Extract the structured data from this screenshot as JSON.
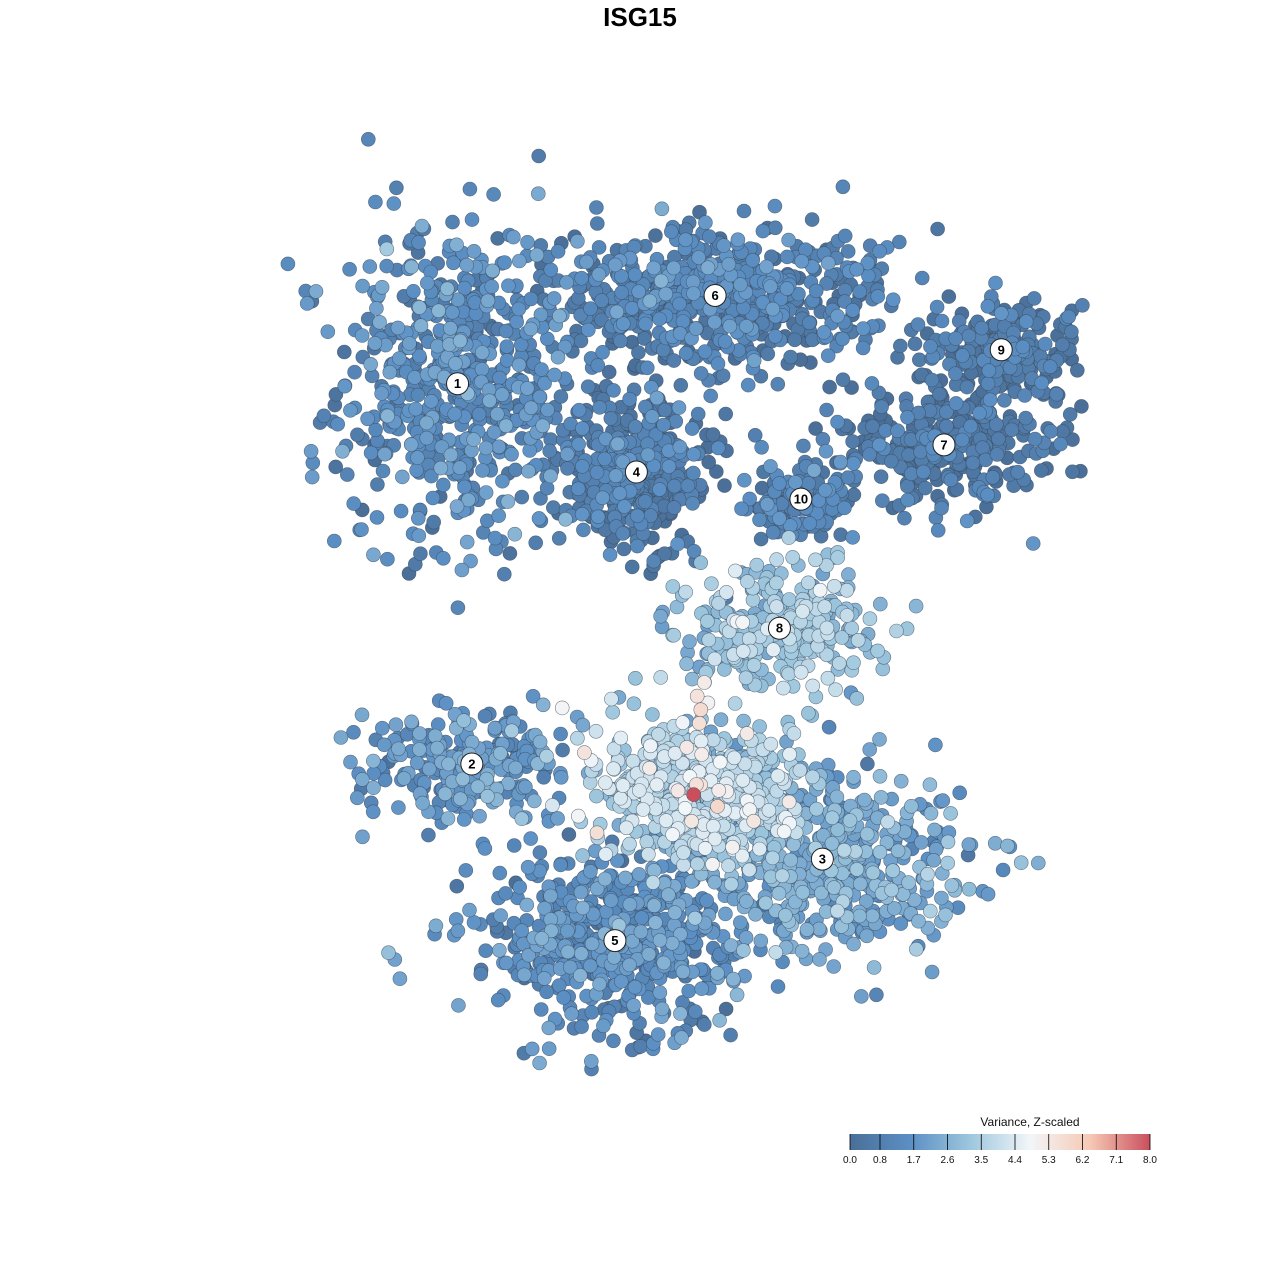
{
  "chart_data": {
    "type": "scatter",
    "title": "ISG15",
    "xlabel": "",
    "ylabel": "",
    "legend": {
      "title": "Variance, Z-scaled",
      "placement": "bottom-right",
      "range": [
        0.0,
        8.0
      ],
      "ticks": [
        "0.0",
        "0.8",
        "1.7",
        "2.6",
        "3.5",
        "4.4",
        "5.3",
        "6.2",
        "7.1",
        "8.0"
      ],
      "colors": [
        "#4a6f98",
        "#5b8fc4",
        "#9dc6dd",
        "#f2f6f9",
        "#f6c9b5",
        "#c94f5d"
      ]
    },
    "clusters": [
      {
        "label": "1",
        "x": 1.1,
        "y": 6.6,
        "sx": 1.1,
        "sy": 1.6,
        "n": 620,
        "mean": 1.3
      },
      {
        "label": "2",
        "x": 1.3,
        "y": 1.0,
        "sx": 1.0,
        "sy": 0.6,
        "n": 260,
        "mean": 1.8
      },
      {
        "label": "3",
        "x": 6.2,
        "y": -0.4,
        "sx": 1.4,
        "sy": 0.9,
        "n": 520,
        "mean": 2.2
      },
      {
        "label": "4",
        "x": 3.6,
        "y": 5.3,
        "sx": 0.7,
        "sy": 0.8,
        "n": 460,
        "mean": 0.6
      },
      {
        "label": "5",
        "x": 3.3,
        "y": -1.6,
        "sx": 1.2,
        "sy": 0.8,
        "n": 560,
        "mean": 1.4
      },
      {
        "label": "6",
        "x": 4.7,
        "y": 7.9,
        "sx": 1.6,
        "sy": 0.7,
        "n": 600,
        "mean": 0.9
      },
      {
        "label": "7",
        "x": 7.9,
        "y": 5.7,
        "sx": 1.1,
        "sy": 0.6,
        "n": 300,
        "mean": 0.5
      },
      {
        "label": "8",
        "x": 5.6,
        "y": 3.0,
        "sx": 0.9,
        "sy": 0.6,
        "n": 300,
        "mean": 3.1
      },
      {
        "label": "9",
        "x": 8.7,
        "y": 7.1,
        "sx": 0.7,
        "sy": 0.5,
        "n": 220,
        "mean": 0.5
      },
      {
        "label": "10",
        "x": 5.9,
        "y": 4.9,
        "sx": 0.5,
        "sy": 0.4,
        "n": 130,
        "mean": 0.9
      },
      {
        "label": "",
        "x": 4.5,
        "y": 0.6,
        "sx": 1.0,
        "sy": 0.7,
        "n": 520,
        "mean": 3.6
      }
    ],
    "highlight_points": [
      {
        "x": 4.4,
        "y": 0.55,
        "value": 8.0
      },
      {
        "x": 4.45,
        "y": 2.0,
        "value": 5.5
      },
      {
        "x": 4.5,
        "y": 1.8,
        "value": 5.8
      },
      {
        "x": 4.55,
        "y": 2.2,
        "value": 5.2
      },
      {
        "x": 4.48,
        "y": 1.6,
        "value": 5.6
      },
      {
        "x": 4.6,
        "y": 1.9,
        "value": 5.0
      }
    ],
    "xlim": [
      -2.5,
      10.5
    ],
    "ylim": [
      -3.8,
      9.6
    ],
    "grid": false
  }
}
